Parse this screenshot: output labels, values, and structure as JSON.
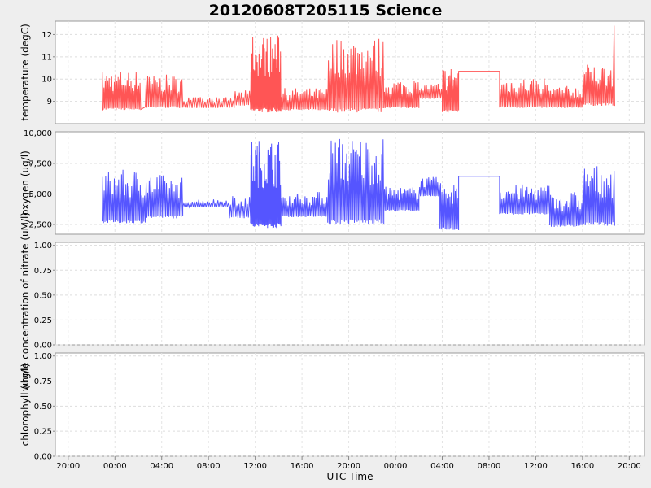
{
  "chart_data": {
    "type": "line",
    "title": "20120608T205115 Science",
    "xlabel": "UTC Time",
    "x_ticks": [
      "20:00",
      "00:00",
      "04:00",
      "08:00",
      "12:00",
      "16:00",
      "20:00",
      "00:00",
      "04:00",
      "08:00",
      "12:00",
      "16:00",
      "20:00"
    ],
    "x_range_hours": [
      -5.1,
      45.3
    ],
    "grid": true,
    "panels": [
      {
        "ylabel": "temperature (degC)",
        "color": "#ff5555",
        "ylim": [
          8.0,
          12.6
        ],
        "yticks": [
          9,
          10,
          11,
          12
        ],
        "ytick_labels": [
          "9",
          "10",
          "11",
          "12"
        ],
        "segments": [
          {
            "t0": -1.1,
            "t1": 2.2,
            "base": 8.6,
            "peak": 10.4,
            "count": 30
          },
          {
            "t0": 2.6,
            "t1": 5.8,
            "base": 8.7,
            "peak": 10.2,
            "count": 24
          },
          {
            "t0": 5.8,
            "t1": 10.2,
            "base": 8.7,
            "peak": 9.2,
            "count": 22
          },
          {
            "t0": 10.2,
            "t1": 11.6,
            "base": 8.8,
            "peak": 9.5,
            "count": 8
          },
          {
            "t0": 11.6,
            "t1": 14.2,
            "base": 8.5,
            "peak": 12.0,
            "count": 34
          },
          {
            "t0": 14.2,
            "t1": 18.2,
            "base": 8.6,
            "peak": 9.6,
            "count": 30
          },
          {
            "t0": 18.2,
            "t1": 23.0,
            "base": 8.5,
            "peak": 11.9,
            "count": 40
          },
          {
            "t0": 23.0,
            "t1": 26.0,
            "base": 8.7,
            "peak": 10.0,
            "count": 26
          },
          {
            "t0": 26.0,
            "t1": 28.0,
            "base": 9.1,
            "peak": 9.8,
            "count": 14
          },
          {
            "t0": 28.0,
            "t1": 29.4,
            "base": 8.5,
            "peak": 10.6,
            "count": 14
          },
          {
            "t0": 32.9,
            "t1": 37.2,
            "base": 8.7,
            "peak": 10.1,
            "count": 32
          },
          {
            "t0": 37.2,
            "t1": 40.0,
            "base": 8.7,
            "peak": 9.7,
            "count": 22
          },
          {
            "t0": 40.0,
            "t1": 42.6,
            "base": 8.8,
            "peak": 10.7,
            "count": 22
          }
        ],
        "flat": [
          {
            "t0": 29.4,
            "t1": 32.9,
            "value": 10.35
          }
        ],
        "spike": {
          "t": 42.7,
          "value": 12.4
        }
      },
      {
        "ylabel": "oxygen (ug/l)",
        "color": "#5555ff",
        "ylim": [
          1700,
          10100
        ],
        "yticks": [
          2500,
          5000,
          7500,
          10000
        ],
        "ytick_labels": [
          "2,500",
          "5,000",
          "7,500",
          "10,000"
        ],
        "segments": [
          {
            "t0": -1.1,
            "t1": 2.6,
            "base": 2600,
            "peak": 7000,
            "count": 30
          },
          {
            "t0": 2.6,
            "t1": 5.8,
            "base": 3000,
            "peak": 6600,
            "count": 24
          },
          {
            "t0": 5.8,
            "t1": 9.8,
            "base": 3900,
            "peak": 4600,
            "count": 22
          },
          {
            "t0": 9.8,
            "t1": 11.6,
            "base": 3000,
            "peak": 5200,
            "count": 10
          },
          {
            "t0": 11.6,
            "t1": 14.2,
            "base": 2200,
            "peak": 9500,
            "count": 34
          },
          {
            "t0": 14.2,
            "t1": 18.2,
            "base": 3100,
            "peak": 5200,
            "count": 30
          },
          {
            "t0": 18.2,
            "t1": 23.0,
            "base": 2500,
            "peak": 9700,
            "count": 40
          },
          {
            "t0": 23.0,
            "t1": 26.0,
            "base": 3600,
            "peak": 5600,
            "count": 26
          },
          {
            "t0": 26.0,
            "t1": 27.8,
            "base": 4800,
            "peak": 6400,
            "count": 14
          },
          {
            "t0": 27.8,
            "t1": 29.4,
            "base": 2000,
            "peak": 6200,
            "count": 14
          },
          {
            "t0": 32.9,
            "t1": 37.2,
            "base": 3300,
            "peak": 5800,
            "count": 32
          },
          {
            "t0": 37.2,
            "t1": 40.0,
            "base": 2300,
            "peak": 5200,
            "count": 22
          },
          {
            "t0": 40.0,
            "t1": 42.6,
            "base": 2400,
            "peak": 7400,
            "count": 22
          }
        ],
        "flat": [
          {
            "t0": 29.4,
            "t1": 32.9,
            "value": 6450
          }
        ],
        "spike": {
          "t": 42.7,
          "value": 6900
        }
      },
      {
        "ylabel": "chlorophyll (ug/l)",
        "ylabel_overlay": "whole concentration of nitrate (uM/l)",
        "color": "#000000",
        "ylim": [
          0,
          1.03
        ],
        "yticks": [
          0,
          0.25,
          0.5,
          0.75,
          1.0
        ],
        "ytick_labels": [
          "0.00",
          "0.25",
          "0.50",
          "0.75",
          "1.00"
        ],
        "segments": [],
        "flat": []
      },
      {
        "ylabel": "chlorophyll (ug/l)",
        "color": "#000000",
        "ylim": [
          0,
          1.03
        ],
        "yticks": [
          0,
          0.25,
          0.5,
          0.75,
          1.0
        ],
        "ytick_labels": [
          "0.00",
          "0.25",
          "0.50",
          "0.75",
          "1.00"
        ],
        "segments": [],
        "flat": []
      }
    ]
  }
}
